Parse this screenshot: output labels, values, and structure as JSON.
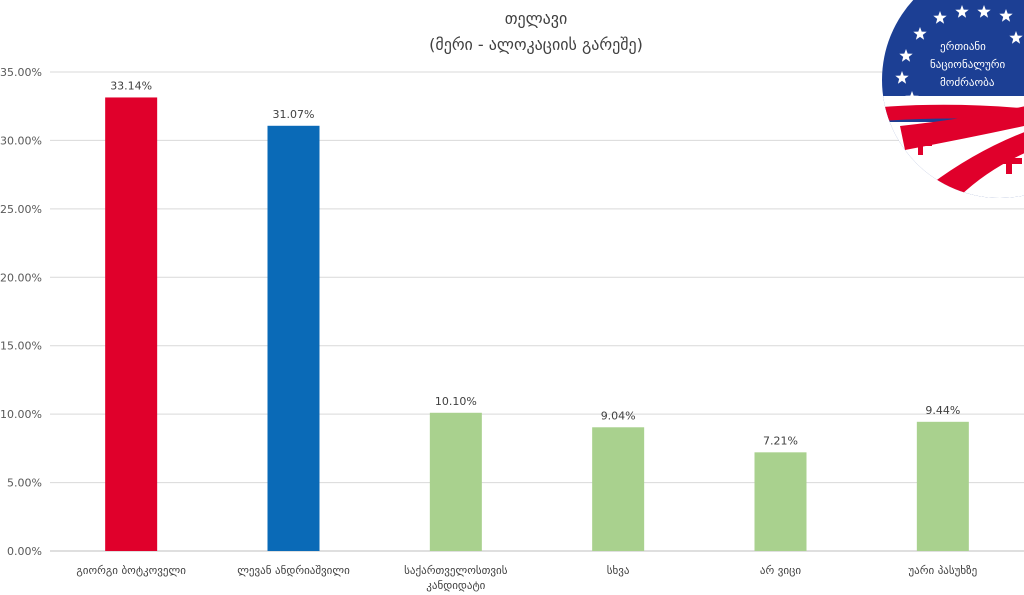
{
  "chart_data": {
    "type": "bar",
    "title": "თელავი",
    "subtitle": "(მერი - ალოკაციის გარეშე)",
    "categories": [
      [
        "გიორგი ბოტკოველი"
      ],
      [
        "ლევან ანდრიაშვილი"
      ],
      [
        "საქართველოსთვის",
        "კანდიდატი"
      ],
      [
        "სხვა"
      ],
      [
        "არ ვიცი"
      ],
      [
        "უარი პასუხზე"
      ]
    ],
    "values": [
      33.14,
      31.07,
      10.1,
      9.04,
      7.21,
      9.44
    ],
    "data_labels": [
      "33.14%",
      "31.07%",
      "10.10%",
      "9.04%",
      "7.21%",
      "9.44%"
    ],
    "bar_colors": [
      "#e0002b",
      "#0a6ab7",
      "#a9d18e",
      "#a9d18e",
      "#a9d18e",
      "#a9d18e"
    ],
    "ylim": [
      0,
      35
    ],
    "yticks": [
      0,
      5,
      10,
      15,
      20,
      25,
      30,
      35
    ],
    "ytick_labels": [
      "0.00%",
      "5.00%",
      "10.00%",
      "15.00%",
      "20.00%",
      "25.00%",
      "30.00%",
      "35.00%"
    ],
    "grid": true,
    "legend": "none"
  },
  "logo": {
    "lines": [
      "ერთიანი",
      "ნაციონალური",
      "მოძრაობა"
    ],
    "colors": {
      "blue": "#1c3f94",
      "red": "#e0002b",
      "white": "#ffffff"
    }
  }
}
